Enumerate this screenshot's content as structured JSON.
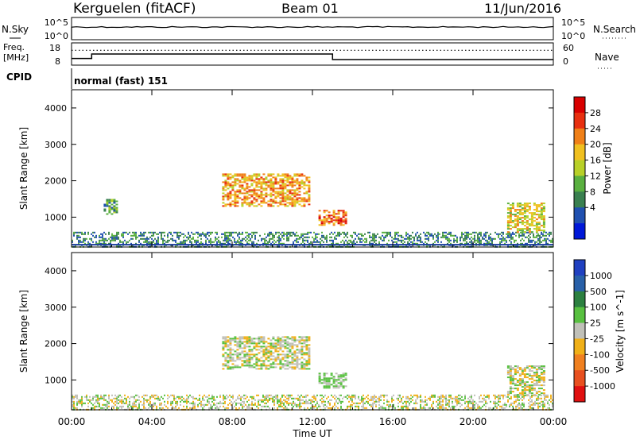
{
  "header": {
    "station": "Kerguelen (fitACF)",
    "beam": "Beam 01",
    "date": "11/Jun/2016"
  },
  "noise_panel": {
    "left_label": "N.Sky",
    "right_label": "N.Search",
    "left_ticks": [
      "10^5",
      "10^0"
    ],
    "right_ticks": [
      "10^5",
      "10^0"
    ]
  },
  "freq_panel": {
    "left_label_1": "Freq.",
    "left_label_2": "[MHz]",
    "right_label": "Nave",
    "left_ticks": [
      "18",
      "8"
    ],
    "right_ticks": [
      "60",
      "0"
    ],
    "freq_steps": [
      {
        "start_hour": 0.0,
        "end_hour": 1.0,
        "freq_mhz": 11.0
      },
      {
        "start_hour": 1.0,
        "end_hour": 13.0,
        "freq_mhz": 13.0
      },
      {
        "start_hour": 13.0,
        "end_hour": 24.0,
        "freq_mhz": 10.5
      }
    ],
    "nave_level": 40
  },
  "cpid": {
    "label": "CPID",
    "program": "normal (fast) 151"
  },
  "x_axis": {
    "title": "Time UT",
    "ticks": [
      "00:00",
      "04:00",
      "08:00",
      "12:00",
      "16:00",
      "20:00",
      "00:00"
    ]
  },
  "chart_data": [
    {
      "type": "heatmap",
      "name": "power",
      "ylabel": "Slant Range [km]",
      "ylim": [
        180,
        4500
      ],
      "xlim_hours": [
        0,
        24
      ],
      "y_ticks": [
        1000,
        2000,
        3000,
        4000
      ],
      "colorbar": {
        "label": "Power [dB]",
        "ticks": [
          "28",
          "24",
          "20",
          "16",
          "12",
          "8",
          "4"
        ],
        "colors": [
          "#0018d8",
          "#2050b0",
          "#3a8050",
          "#5ab040",
          "#b8d028",
          "#f0c020",
          "#f08018",
          "#e83010",
          "#d80000"
        ]
      },
      "features": [
        {
          "region": "ground scatter band",
          "start_hour": 0.0,
          "end_hour": 24.0,
          "range_km": [
            200,
            600
          ],
          "level_db": 8
        },
        {
          "region": "small patch",
          "start_hour": 1.6,
          "end_hour": 2.3,
          "range_km": [
            1100,
            1500
          ],
          "level_db": 10
        },
        {
          "region": "main echo",
          "start_hour": 7.5,
          "end_hour": 11.8,
          "range_km": [
            1300,
            2200
          ],
          "level_db": 22
        },
        {
          "region": "echo at 12-13 UT",
          "start_hour": 12.3,
          "end_hour": 13.7,
          "range_km": [
            800,
            1200
          ],
          "level_db": 26
        },
        {
          "region": "late patch",
          "start_hour": 21.7,
          "end_hour": 23.6,
          "range_km": [
            600,
            1400
          ],
          "level_db": 18
        }
      ]
    },
    {
      "type": "heatmap",
      "name": "velocity",
      "ylabel": "Slant Range [km]",
      "ylim": [
        180,
        4500
      ],
      "xlim_hours": [
        0,
        24
      ],
      "y_ticks": [
        1000,
        2000,
        3000,
        4000
      ],
      "colorbar": {
        "label": "Velocity [m s^-1]",
        "ticks": [
          "1000",
          "500",
          "100",
          "25",
          "-25",
          "-100",
          "-500",
          "-1000"
        ],
        "colors": [
          "#2040c0",
          "#2860a8",
          "#2c8040",
          "#58c040",
          "#c0c0b8",
          "#f0b018",
          "#f08020",
          "#e85020",
          "#e01010"
        ]
      },
      "features": [
        {
          "region": "ground scatter band",
          "start_hour": 0.0,
          "end_hour": 24.0,
          "range_km": [
            200,
            600
          ],
          "velocity_ms": 0
        },
        {
          "region": "main echo",
          "start_hour": 7.5,
          "end_hour": 11.8,
          "range_km": [
            1300,
            2200
          ],
          "velocity_ms": 0
        },
        {
          "region": "echo at 12-13 UT",
          "start_hour": 12.3,
          "end_hour": 13.7,
          "range_km": [
            800,
            1200
          ],
          "velocity_ms": 100
        },
        {
          "region": "late patch",
          "start_hour": 21.7,
          "end_hour": 23.6,
          "range_km": [
            600,
            1400
          ],
          "velocity_ms": 0
        }
      ]
    }
  ]
}
